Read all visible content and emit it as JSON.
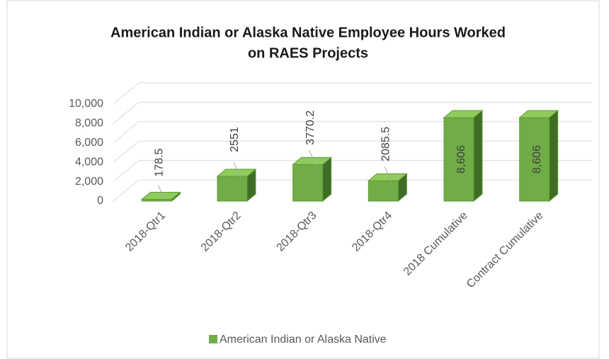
{
  "chart_data": {
    "type": "bar3d",
    "title": [
      "American Indian or Alaska Native Employee Hours Worked",
      "on RAES Projects"
    ],
    "categories": [
      "2018-Qtr1",
      "2018-Qtr2",
      "2018-Qtr3",
      "2018-Qtr4",
      "2018 Cumulative",
      "Contract Cumulative"
    ],
    "series": [
      {
        "name": "American Indian or Alaska Native",
        "color": "#70ad47",
        "values": [
          178.5,
          2551,
          3770.2,
          2085.5,
          8606,
          8606
        ],
        "value_labels": [
          "178.5",
          "2551",
          "3770.2",
          "2085.5",
          "8,606",
          "8,606"
        ]
      }
    ],
    "ylim": [
      0,
      10000
    ],
    "yticks": [
      0,
      {
        "value": 2000,
        "label": "2,000"
      },
      {
        "value": 4000,
        "label": "4,000"
      },
      {
        "value": 6000,
        "label": "6,000"
      },
      {
        "value": 8000,
        "label": "8,000"
      },
      {
        "value": 10000,
        "label": "10,000"
      }
    ],
    "grid": true,
    "legend": "bottom"
  }
}
